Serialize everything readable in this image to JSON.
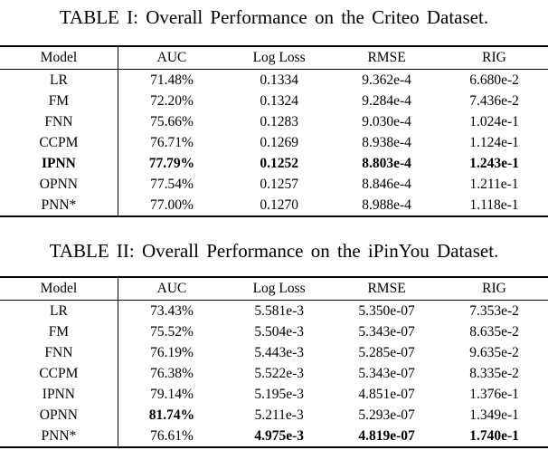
{
  "page": {
    "background_color": "#ffffff",
    "text_color": "#000000",
    "rule_color": "#000000"
  },
  "tables": [
    {
      "title": "TABLE I: Overall Performance on the Criteo Dataset.",
      "headers": [
        "Model",
        "AUC",
        "Log Loss",
        "RMSE",
        "RIG"
      ],
      "rows": [
        {
          "cells": [
            "LR",
            "71.48%",
            "0.1334",
            "9.362e-4",
            "6.680e-2"
          ],
          "bold": [
            false,
            false,
            false,
            false,
            false
          ]
        },
        {
          "cells": [
            "FM",
            "72.20%",
            "0.1324",
            "9.284e-4",
            "7.436e-2"
          ],
          "bold": [
            false,
            false,
            false,
            false,
            false
          ]
        },
        {
          "cells": [
            "FNN",
            "75.66%",
            "0.1283",
            "9.030e-4",
            "1.024e-1"
          ],
          "bold": [
            false,
            false,
            false,
            false,
            false
          ]
        },
        {
          "cells": [
            "CCPM",
            "76.71%",
            "0.1269",
            "8.938e-4",
            "1.124e-1"
          ],
          "bold": [
            false,
            false,
            false,
            false,
            false
          ]
        },
        {
          "cells": [
            "IPNN",
            "77.79%",
            "0.1252",
            "8.803e-4",
            "1.243e-1"
          ],
          "bold": [
            true,
            true,
            true,
            true,
            true
          ]
        },
        {
          "cells": [
            "OPNN",
            "77.54%",
            "0.1257",
            "8.846e-4",
            "1.211e-1"
          ],
          "bold": [
            false,
            false,
            false,
            false,
            false
          ]
        },
        {
          "cells": [
            "PNN*",
            "77.00%",
            "0.1270",
            "8.988e-4",
            "1.118e-1"
          ],
          "bold": [
            false,
            false,
            false,
            false,
            false
          ]
        }
      ]
    },
    {
      "title": "TABLE II: Overall Performance on the iPinYou Dataset.",
      "headers": [
        "Model",
        "AUC",
        "Log Loss",
        "RMSE",
        "RIG"
      ],
      "rows": [
        {
          "cells": [
            "LR",
            "73.43%",
            "5.581e-3",
            "5.350e-07",
            "7.353e-2"
          ],
          "bold": [
            false,
            false,
            false,
            false,
            false
          ]
        },
        {
          "cells": [
            "FM",
            "75.52%",
            "5.504e-3",
            "5.343e-07",
            "8.635e-2"
          ],
          "bold": [
            false,
            false,
            false,
            false,
            false
          ]
        },
        {
          "cells": [
            "FNN",
            "76.19%",
            "5.443e-3",
            "5.285e-07",
            "9.635e-2"
          ],
          "bold": [
            false,
            false,
            false,
            false,
            false
          ]
        },
        {
          "cells": [
            "CCPM",
            "76.38%",
            "5.522e-3",
            "5.343e-07",
            "8.335e-2"
          ],
          "bold": [
            false,
            false,
            false,
            false,
            false
          ]
        },
        {
          "cells": [
            "IPNN",
            "79.14%",
            "5.195e-3",
            "4.851e-07",
            "1.376e-1"
          ],
          "bold": [
            false,
            false,
            false,
            false,
            false
          ]
        },
        {
          "cells": [
            "OPNN",
            "81.74%",
            "5.211e-3",
            "5.293e-07",
            "1.349e-1"
          ],
          "bold": [
            false,
            true,
            false,
            false,
            false
          ]
        },
        {
          "cells": [
            "PNN*",
            "76.61%",
            "4.975e-3",
            "4.819e-07",
            "1.740e-1"
          ],
          "bold": [
            false,
            false,
            true,
            true,
            true
          ]
        }
      ]
    }
  ]
}
